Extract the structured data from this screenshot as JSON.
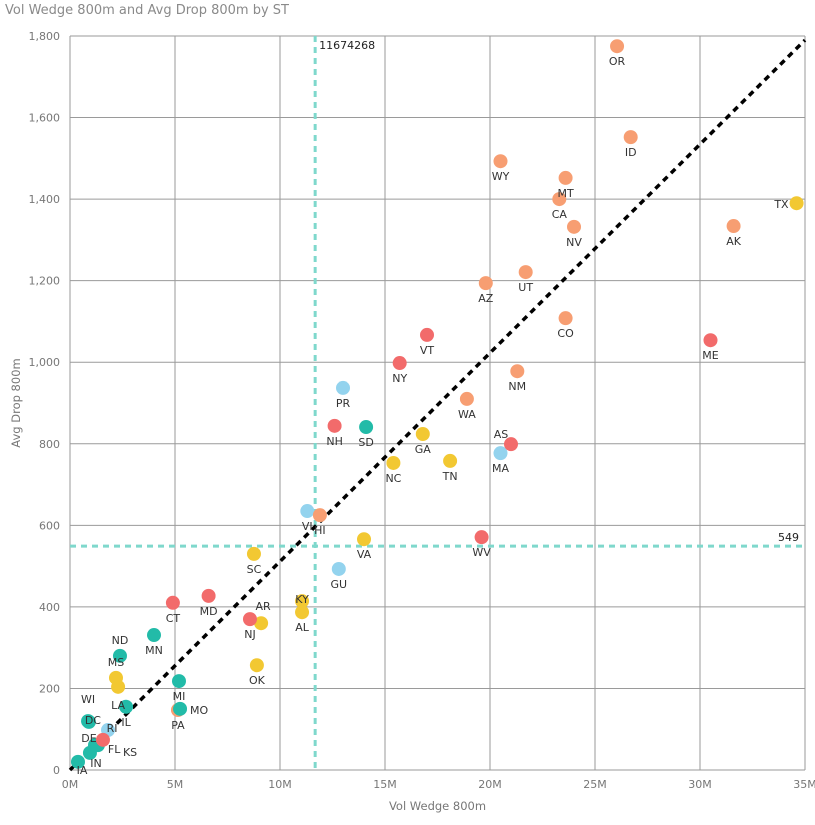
{
  "chart_data": {
    "type": "scatter",
    "title": "Vol Wedge 800m and Avg Drop 800m by ST",
    "xlabel": "Vol Wedge 800m",
    "ylabel": "Avg Drop 800m",
    "xlim": [
      0,
      35000000
    ],
    "ylim": [
      0,
      1800
    ],
    "x_ticks": [
      0,
      5000000,
      10000000,
      15000000,
      20000000,
      25000000,
      30000000,
      35000000
    ],
    "x_tick_labels": [
      "0M",
      "5M",
      "10M",
      "15M",
      "20M",
      "25M",
      "30M",
      "35M"
    ],
    "y_ticks": [
      0,
      200,
      400,
      600,
      800,
      1000,
      1200,
      1400,
      1600,
      1800
    ],
    "y_tick_labels": [
      "0",
      "200",
      "400",
      "600",
      "800",
      "1,000",
      "1,200",
      "1,400",
      "1,600",
      "1,800"
    ],
    "grid": true,
    "colors": {
      "orange": "#F79E72",
      "red": "#F26B6B",
      "teal": "#22BBA8",
      "lightblue": "#93D3EE",
      "yellow": "#F2C832",
      "grid": "#9a9a9a",
      "reference": "#7fd8cc",
      "trend": "#000000"
    },
    "reference_lines": [
      {
        "axis": "x",
        "value": 11674268,
        "label": "11674268"
      },
      {
        "axis": "y",
        "value": 549,
        "label": "549"
      }
    ],
    "trend_line": {
      "from": [
        0,
        0
      ],
      "to": [
        35000000,
        1790
      ]
    },
    "points": [
      {
        "label": "OR",
        "x": 26050000,
        "y": 1775,
        "color": "orange"
      },
      {
        "label": "ID",
        "x": 26700000,
        "y": 1552,
        "color": "orange"
      },
      {
        "label": "WY",
        "x": 20500000,
        "y": 1493,
        "color": "orange"
      },
      {
        "label": "MT",
        "x": 23600000,
        "y": 1452,
        "color": "orange"
      },
      {
        "label": "CA",
        "x": 23300000,
        "y": 1400,
        "color": "orange"
      },
      {
        "label": "NV",
        "x": 24000000,
        "y": 1332,
        "color": "orange"
      },
      {
        "label": "TX",
        "x": 34600000,
        "y": 1390,
        "color": "yellow"
      },
      {
        "label": "AK",
        "x": 31600000,
        "y": 1334,
        "color": "orange"
      },
      {
        "label": "AZ",
        "x": 19800000,
        "y": 1194,
        "color": "orange"
      },
      {
        "label": "UT",
        "x": 21700000,
        "y": 1221,
        "color": "orange"
      },
      {
        "label": "CO",
        "x": 23600000,
        "y": 1108,
        "color": "orange"
      },
      {
        "label": "VT",
        "x": 17000000,
        "y": 1067,
        "color": "red"
      },
      {
        "label": "ME",
        "x": 30500000,
        "y": 1054,
        "color": "red"
      },
      {
        "label": "NY",
        "x": 15700000,
        "y": 998,
        "color": "red"
      },
      {
        "label": "NM",
        "x": 21300000,
        "y": 978,
        "color": "orange"
      },
      {
        "label": "PR",
        "x": 13000000,
        "y": 937,
        "color": "lightblue"
      },
      {
        "label": "WA",
        "x": 18900000,
        "y": 910,
        "color": "orange"
      },
      {
        "label": "NH",
        "x": 12600000,
        "y": 844,
        "color": "red"
      },
      {
        "label": "SD",
        "x": 14100000,
        "y": 841,
        "color": "teal"
      },
      {
        "label": "GA",
        "x": 16800000,
        "y": 824,
        "color": "yellow"
      },
      {
        "label": "MA",
        "x": 20500000,
        "y": 777,
        "color": "lightblue"
      },
      {
        "label": "AS",
        "x": 21000000,
        "y": 799,
        "color": "red"
      },
      {
        "label": "NC",
        "x": 15400000,
        "y": 753,
        "color": "yellow"
      },
      {
        "label": "TN",
        "x": 18100000,
        "y": 758,
        "color": "yellow"
      },
      {
        "label": "VI",
        "x": 11300000,
        "y": 635,
        "color": "lightblue"
      },
      {
        "label": "HI",
        "x": 11900000,
        "y": 625,
        "color": "orange"
      },
      {
        "label": "VA",
        "x": 14000000,
        "y": 566,
        "color": "yellow"
      },
      {
        "label": "WV",
        "x": 19600000,
        "y": 571,
        "color": "red"
      },
      {
        "label": "SC",
        "x": 8760000,
        "y": 530,
        "color": "yellow"
      },
      {
        "label": "GU",
        "x": 12800000,
        "y": 493,
        "color": "lightblue"
      },
      {
        "label": "KY",
        "x": 11050000,
        "y": 414,
        "color": "yellow"
      },
      {
        "label": "AL",
        "x": 11050000,
        "y": 387,
        "color": "yellow"
      },
      {
        "label": "CT",
        "x": 4900000,
        "y": 410,
        "color": "red"
      },
      {
        "label": "MD",
        "x": 6600000,
        "y": 427,
        "color": "red"
      },
      {
        "label": "AR",
        "x": 9100000,
        "y": 360,
        "color": "yellow"
      },
      {
        "label": "NJ",
        "x": 8570000,
        "y": 370,
        "color": "red"
      },
      {
        "label": "MN",
        "x": 4000000,
        "y": 331,
        "color": "teal"
      },
      {
        "label": "ND",
        "x": 2380000,
        "y": 280,
        "color": "teal"
      },
      {
        "label": "MS",
        "x": 2190000,
        "y": 226,
        "color": "yellow"
      },
      {
        "label": "LA",
        "x": 2290000,
        "y": 204,
        "color": "yellow"
      },
      {
        "label": "OK",
        "x": 8900000,
        "y": 257,
        "color": "yellow"
      },
      {
        "label": "MI",
        "x": 5190000,
        "y": 218,
        "color": "teal"
      },
      {
        "label": "IL",
        "x": 2670000,
        "y": 155,
        "color": "teal"
      },
      {
        "label": "PA",
        "x": 5140000,
        "y": 147,
        "color": "orange"
      },
      {
        "label": "MO",
        "x": 5240000,
        "y": 150,
        "color": "teal"
      },
      {
        "label": "WI",
        "x": 860000,
        "y": 120,
        "color": "teal"
      },
      {
        "label": "DC",
        "x": 900000,
        "y": 118,
        "color": "teal"
      },
      {
        "label": "RI",
        "x": 1810000,
        "y": 98,
        "color": "lightblue"
      },
      {
        "label": "DE",
        "x": 1190000,
        "y": 61,
        "color": "teal"
      },
      {
        "label": "FL",
        "x": 1330000,
        "y": 61,
        "color": "teal"
      },
      {
        "label": "KS",
        "x": 1570000,
        "y": 74,
        "color": "red"
      },
      {
        "label": "IN",
        "x": 950000,
        "y": 42,
        "color": "teal"
      },
      {
        "label": "IA",
        "x": 380000,
        "y": 20,
        "color": "teal"
      }
    ]
  }
}
